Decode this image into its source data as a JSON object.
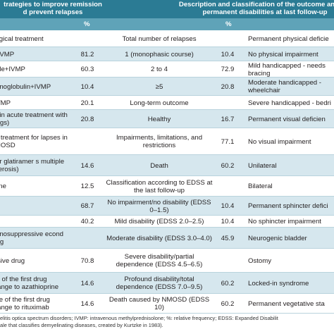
{
  "header": {
    "left_line1": "trategies to improve remission",
    "left_line2": "d prevent relapses",
    "right_line1": "Description and classification of the outcome and the",
    "right_line2": "permanent disabilities at last follow-up",
    "pct_left": "%",
    "pct_right": "%"
  },
  "rows": [
    {
      "c1": "ological treatment",
      "c2": "",
      "c3": "Total number of relapses",
      "c4": "",
      "c5": "Permanent physical deficie"
    },
    {
      "c1": "of IVMP",
      "c2": "81.2",
      "c3": "1 (monophasic course)",
      "c4": "10.4",
      "c5": "No physical impairment"
    },
    {
      "c1": "mide+IVMP",
      "c2": "60.3",
      "c3": "2 to 4",
      "c4": "72.9",
      "c5": "Mild handicapped - needs bracing"
    },
    {
      "c1": "munoglobulin+IVMP",
      "c2": "10.4",
      "c3": "≥5",
      "c4": "20.8",
      "c5": "Moderate handicapped - wheelchair"
    },
    {
      "c1": "+IVMP",
      "c2": "20.1",
      "c3": "Long-term outcome",
      "c4": "",
      "c5": "Severe handicapped - bedri"
    },
    {
      "c1": "ge in acute treatment with drugs)",
      "c2": "20.8",
      "c3": "Healthy",
      "c4": "16.7",
      "c5": "Permanent visual deficien"
    },
    {
      "c1": "ive treatment for lapses in NMOSD",
      "c2": "",
      "c3": "Impairments, limitations, and restrictions",
      "c4": "77.1",
      "c5": "No visual impairment"
    },
    {
      "c1": "n or glatiramer s multiple sclerosis)",
      "c2": "14.6",
      "c3": "Death",
      "c4": "60.2",
      "c5": "Unilateral"
    },
    {
      "c1": "isone",
      "c2": "12.5",
      "c3": "Classification according to EDSS at the last follow-up",
      "c4": "",
      "c5": "Bilateral"
    },
    {
      "c1": "",
      "c2": "68.7",
      "c3": "No impairment/no disability (EDSS 0–1.5)",
      "c4": "10.4",
      "c5": "Permanent sphincter defici"
    },
    {
      "c1": "",
      "c2": "40.2",
      "c3": "Mild disability (EDSS 2.0–2.5)",
      "c4": "10.4",
      "c5": "No sphincter impairment"
    },
    {
      "c1": "munosuppressive econd drug",
      "c2": "",
      "c3": "Moderate disability (EDSS 3.0–4.0)",
      "c4": "45.9",
      "c5": "Neurogenic bladder"
    },
    {
      "c1": "essive drug",
      "c2": "70.8",
      "c3": "Severe disability/partial dependence (EDSS 4.5–6.5)",
      "c4": "",
      "c5": "Ostomy"
    },
    {
      "c1": "ure of the first drug change to azathioprine",
      "c2": "14.6",
      "c3": "Profound disability/total dependence (EDSS 7.0–9.5)",
      "c4": "60.2",
      "c5": "Locked-in syndrome"
    },
    {
      "c1": "ilure of the first drug change to rituximab",
      "c2": "14.6",
      "c3": "Death caused by NMOSD (EDSS 10)",
      "c4": "60.2",
      "c5": "Permanent vegetative sta"
    }
  ],
  "footer": {
    "line1": "elitis optica spectrum disorders; IVMP: intravenous methylprednisolone; %: relative frequency; EDSS: Expanded Disabilit",
    "line2": "ale that classifies demyelinating diseases, created by Kurtzke in 1983)."
  },
  "colors": {
    "header_dark": "#2b7b94",
    "header_light": "#5fa3b8",
    "row_stripe": "#d6e7ee",
    "row_white": "#ffffff"
  }
}
